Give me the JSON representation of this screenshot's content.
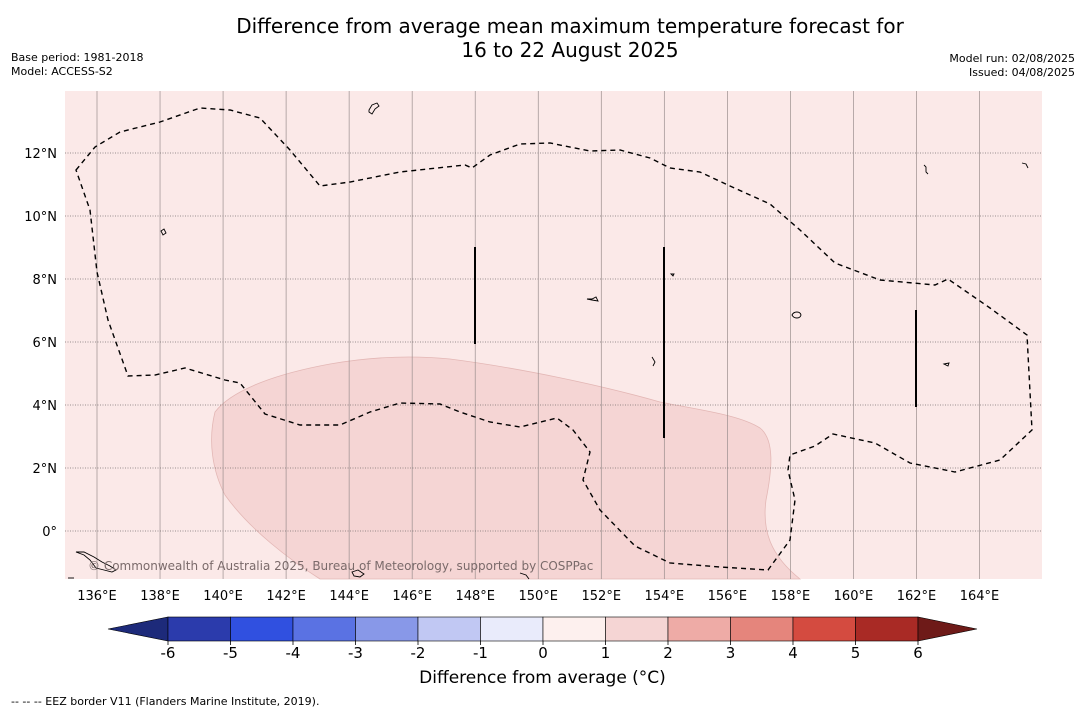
{
  "title": {
    "line1": "Difference from average mean maximum temperature forecast for",
    "line2": "16 to 22 August 2025"
  },
  "meta_left": [
    "Base period: 1981-2018",
    "Model: ACCESS-S2"
  ],
  "meta_right": [
    "Model run: 02/08/2025",
    "Issued: 04/08/2025"
  ],
  "copyright": "© Commonwealth of Australia 2025, Bureau of Meteorology, supported by COSPPac",
  "footnote": "--  --  -- EEZ border V11 (Flanders Marine Institute, 2019).",
  "map": {
    "lon_range": [
      135,
      166
    ],
    "lat_range": [
      -1.5,
      14
    ],
    "lon_ticks": [
      "136°E",
      "138°E",
      "140°E",
      "142°E",
      "144°E",
      "146°E",
      "148°E",
      "150°E",
      "152°E",
      "154°E",
      "156°E",
      "158°E",
      "160°E",
      "162°E",
      "164°E"
    ],
    "lat_ticks": [
      "0°",
      "2°N",
      "4°N",
      "6°N",
      "8°N",
      "10°N",
      "12°N"
    ],
    "colors": {
      "background_anomaly": "#fbe9e8",
      "anomaly_1_to_2": "#f5d5d4",
      "gridline": "#555555",
      "eez_border": "#000000"
    },
    "regions": [
      {
        "name": "0 to 1",
        "color": "#fbe9e8"
      },
      {
        "name": "1 to 2",
        "color": "#f5d5d4"
      }
    ]
  },
  "colorbar": {
    "label": "Difference from average (°C)",
    "tick_labels": [
      "-6",
      "-5",
      "-4",
      "-3",
      "-2",
      "-1",
      "0",
      "1",
      "2",
      "3",
      "4",
      "5",
      "6"
    ],
    "colors": [
      "#1d2a7a",
      "#2b3bac",
      "#3050e0",
      "#5a72e3",
      "#8898e8",
      "#c1c8f3",
      "#e9ebfb",
      "#fdf0ee",
      "#f5d5d4",
      "#eeaba6",
      "#e5857c",
      "#d44b40",
      "#a92a25",
      "#6e1a18"
    ]
  }
}
